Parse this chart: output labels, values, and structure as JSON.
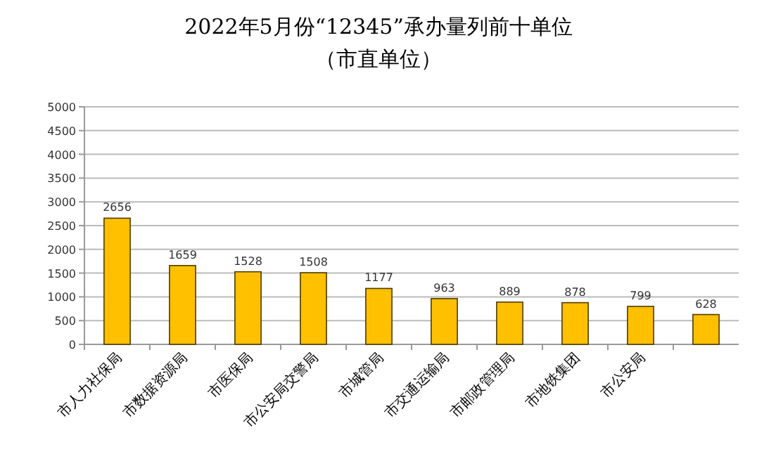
{
  "chart_data": {
    "type": "bar",
    "title": "2022年5月份“12345”承办量列前十单位",
    "subtitle": "（市直单位）",
    "categories": [
      "市人力社保局",
      "市数据资源局",
      "市医保局",
      "市公安局交警局",
      "市城管局",
      "市交通运输局",
      "市邮政管理局",
      "市地铁集团",
      "市公安局",
      null
    ],
    "values": [
      2656,
      1659,
      1528,
      1508,
      1177,
      963,
      889,
      878,
      799,
      628
    ],
    "color": "#ffc000",
    "ylim": [
      0,
      5000
    ],
    "yticks": [
      0,
      500,
      1000,
      1500,
      2000,
      2500,
      3000,
      3500,
      4000,
      4500,
      5000
    ],
    "grid": "y",
    "data_labels": true
  }
}
